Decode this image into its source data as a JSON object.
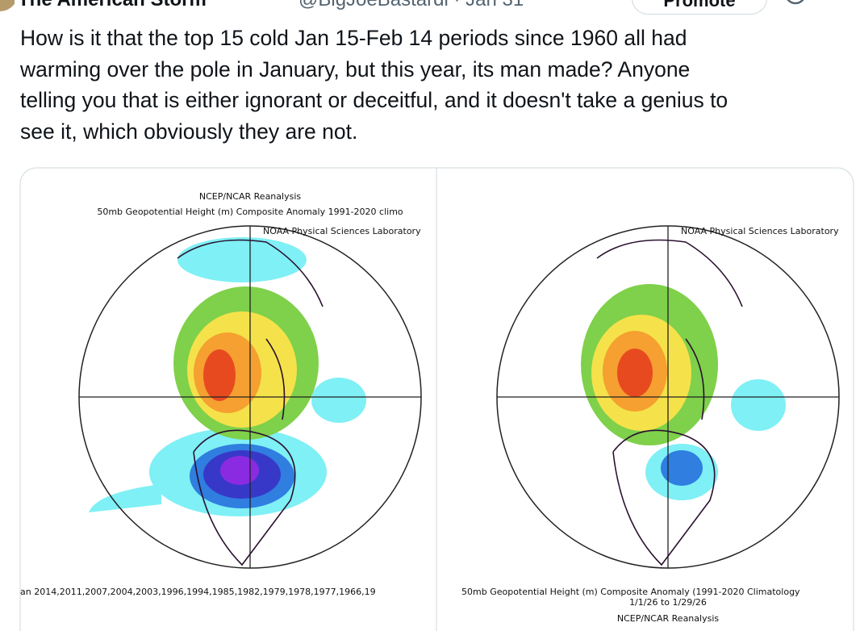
{
  "header": {
    "display_name": "The American Storm",
    "handle_and_date": "@BigJoeBastardi · Jan 31",
    "promote_button": "Promote"
  },
  "post": {
    "text_lines": [
      "How is it that the top 15 cold Jan 15-Feb 14 periods since 1960  all had",
      "warming over the pole in January, but  this year, its man made? Anyone",
      "telling you that is either ignorant or deceitful, and it doesn't take a genius to",
      "see it, which obviously they are not."
    ]
  },
  "images": [
    {
      "title_lines": [
        "NCEP/NCAR Reanalysis",
        "50mb Geopotential Height (m) Composite Anomaly 1991-2020 climo"
      ],
      "credit": "NOAA Physical Sciences Laboratory",
      "caption_lines": [
        "an 2014,2011,2007,2004,2003,1996,1994,1985,1982,1979,1978,1977,1966,19"
      ]
    },
    {
      "credit": "NOAA Physical Sciences Laboratory",
      "caption_lines": [
        "50mb Geopotential Height (m) Composite Anomaly (1991-2020 Climatology",
        "1/1/26  to 1/29/26",
        "NCEP/NCAR Reanalysis"
      ]
    }
  ]
}
